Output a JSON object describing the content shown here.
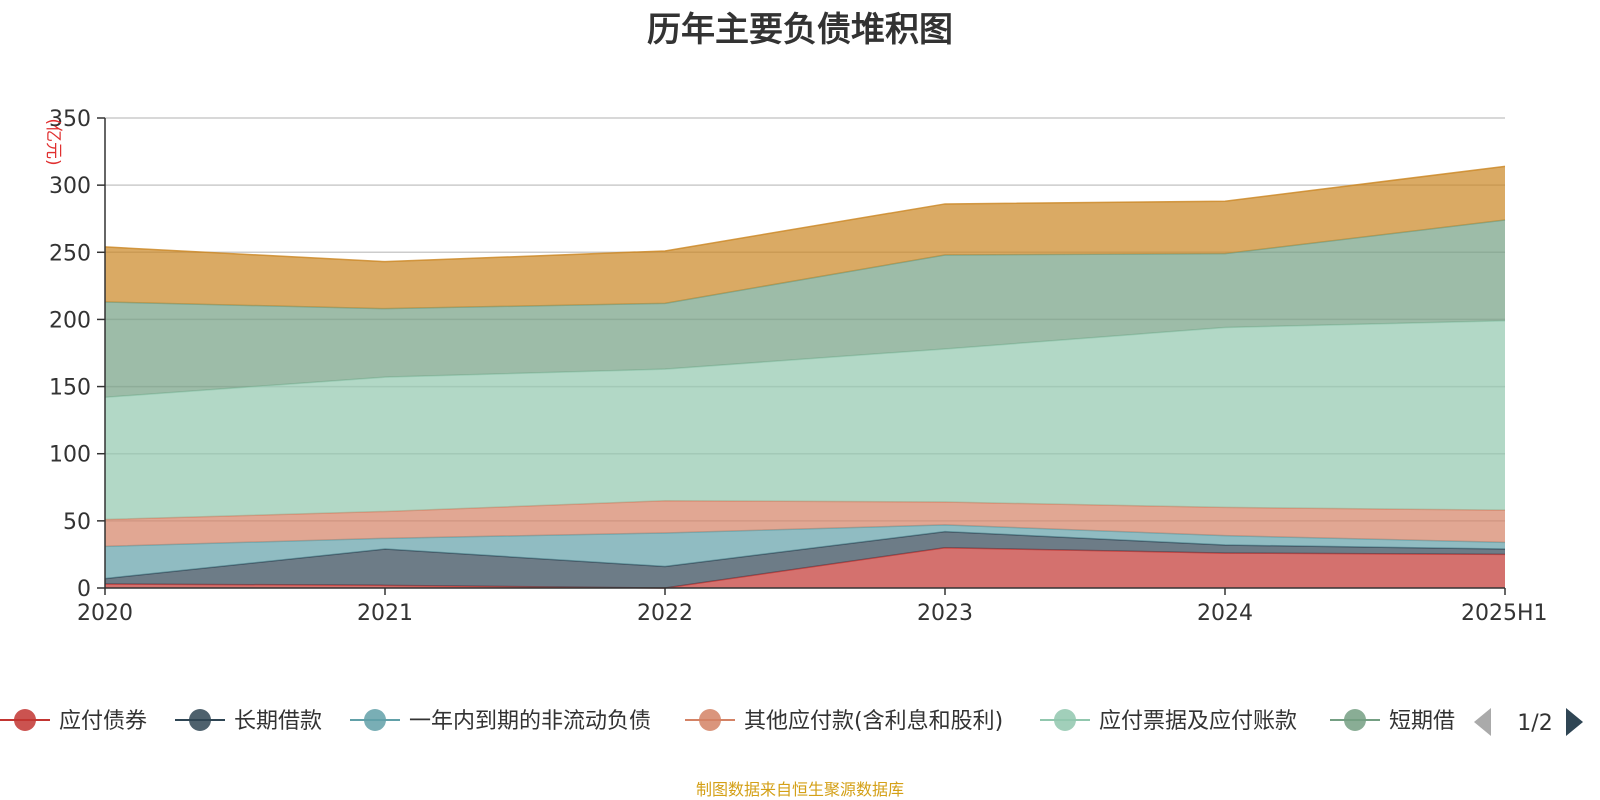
{
  "chart_data": {
    "type": "area",
    "stacked": true,
    "title": "历年主要负债堆积图",
    "unit_label": "(亿元)",
    "categories": [
      "2020",
      "2021",
      "2022",
      "2023",
      "2024",
      "2025H1"
    ],
    "ylim": [
      0,
      350
    ],
    "yticks": [
      0,
      50,
      100,
      150,
      200,
      250,
      300,
      350
    ],
    "grid": true,
    "legend_position": "bottom",
    "legend_page": "1/2",
    "series": [
      {
        "name": "应付债券",
        "color": "#c23531",
        "values": [
          3,
          2,
          0,
          30,
          26,
          25
        ]
      },
      {
        "name": "长期借款",
        "color": "#2f4554",
        "values": [
          4,
          27,
          16,
          12,
          6,
          4
        ]
      },
      {
        "name": "一年内到期的非流动负债",
        "color": "#61a0a8",
        "values": [
          24,
          8,
          25,
          5,
          7,
          5
        ]
      },
      {
        "name": "其他应付款(含利息和股利)",
        "color": "#d48265",
        "values": [
          20,
          20,
          24,
          17,
          21,
          24
        ]
      },
      {
        "name": "应付票据及应付账款",
        "color": "#91c7ae",
        "values": [
          91,
          100,
          98,
          114,
          134,
          141
        ]
      },
      {
        "name": "短期借款",
        "color": "#749f83",
        "values": [
          71,
          51,
          49,
          70,
          55,
          75
        ]
      },
      {
        "name": "",
        "color": "#ca8622",
        "values": [
          41,
          35,
          39,
          38,
          39,
          40
        ]
      }
    ]
  },
  "footer": "制图数据来自恒生聚源数据库"
}
